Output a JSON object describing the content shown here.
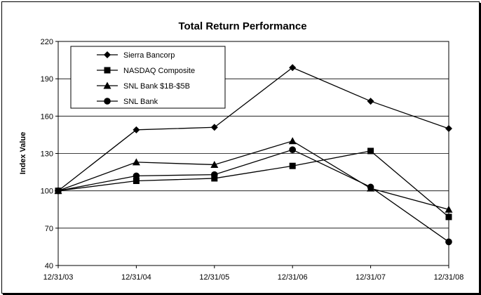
{
  "chart_data": {
    "type": "line",
    "title": "Total Return Performance",
    "xlabel": "",
    "ylabel": "Index Value",
    "categories": [
      "12/31/03",
      "12/31/04",
      "12/31/05",
      "12/31/06",
      "12/31/07",
      "12/31/08"
    ],
    "ylim": [
      40,
      220
    ],
    "yticks": [
      40,
      70,
      100,
      130,
      160,
      190,
      220
    ],
    "grid": "horizontal",
    "legend_position": "top-left",
    "series": [
      {
        "name": "Sierra Bancorp",
        "marker": "diamond",
        "values": [
          100,
          149,
          151,
          199,
          172,
          150
        ]
      },
      {
        "name": "NASDAQ Composite",
        "marker": "square",
        "values": [
          100,
          108,
          110,
          120,
          132,
          79
        ]
      },
      {
        "name": "SNL Bank $1B-$5B",
        "marker": "triangle",
        "values": [
          100,
          123,
          121,
          140,
          102,
          85
        ]
      },
      {
        "name": "SNL Bank",
        "marker": "circle",
        "values": [
          100,
          112,
          113,
          133,
          103,
          59
        ]
      }
    ]
  }
}
